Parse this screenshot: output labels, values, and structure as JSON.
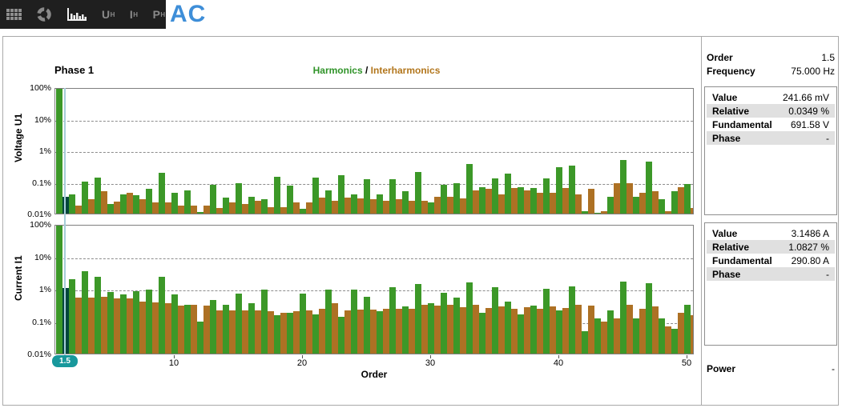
{
  "window": {
    "title": "AC"
  },
  "toolbar": {
    "u_label": "U",
    "i_label": "I",
    "p_label": "P",
    "sub": "H",
    "icons": [
      "table-grid-icon",
      "refresh-donut-icon",
      "harmonics-spectrum-icon"
    ]
  },
  "header": {
    "phase_label": "Phase 1"
  },
  "legend": {
    "harmonics_label": "Harmonics",
    "separator": " / ",
    "interharmonics_label": "Interharmonics"
  },
  "colors": {
    "harmonic": "#3c9828",
    "interharmonic": "#ad7124",
    "selected_bar": "#00473c",
    "cursor_line": "#a7ced9",
    "badge": "#18989c",
    "legend_harmonics": "#2f9328",
    "legend_interharmonics": "#b2761c",
    "accent_blue": "#3e8ed8"
  },
  "cursor": {
    "badge": "1.5",
    "order": 1.5
  },
  "x_axis": {
    "ticks": [
      10,
      20,
      30,
      40,
      50
    ],
    "label": "Order"
  },
  "chart_data": [
    {
      "type": "bar",
      "ylabel": "Voltage U1",
      "yticks": [
        "100%",
        "10%",
        "1%",
        "0.1%",
        "0.01%"
      ],
      "ylim_log_percent": [
        0.01,
        100
      ],
      "grid": "dashed-horizontal",
      "selected_order": 1.5,
      "series_rule": "integer orders = Harmonics (green), half orders = Interharmonics (orange)",
      "x": [
        1,
        1.5,
        2,
        2.5,
        3,
        3.5,
        4,
        4.5,
        5,
        5.5,
        6,
        6.5,
        7,
        7.5,
        8,
        8.5,
        9,
        9.5,
        10,
        10.5,
        11,
        11.5,
        12,
        12.5,
        13,
        13.5,
        14,
        14.5,
        15,
        15.5,
        16,
        16.5,
        17,
        17.5,
        18,
        18.5,
        19,
        19.5,
        20,
        20.5,
        21,
        21.5,
        22,
        22.5,
        23,
        23.5,
        24,
        24.5,
        25,
        25.5,
        26,
        26.5,
        27,
        27.5,
        28,
        28.5,
        29,
        29.5,
        30,
        30.5,
        31,
        31.5,
        32,
        32.5,
        33,
        33.5,
        34,
        34.5,
        35,
        35.5,
        36,
        36.5,
        37,
        37.5,
        38,
        38.5,
        39,
        39.5,
        40,
        40.5,
        41,
        41.5,
        42,
        42.5,
        43,
        43.5,
        44,
        44.5,
        45,
        45.5,
        46,
        46.5,
        47,
        47.5,
        48,
        48.5,
        49,
        49.5,
        50,
        50.5
      ],
      "values": [
        100,
        0.0349,
        0.04,
        0.018,
        0.105,
        0.028,
        0.14,
        0.05,
        0.02,
        0.024,
        0.04,
        0.045,
        0.038,
        0.028,
        0.06,
        0.022,
        0.2,
        0.022,
        0.045,
        0.018,
        0.055,
        0.018,
        0.011,
        0.018,
        0.08,
        0.015,
        0.032,
        0.022,
        0.09,
        0.02,
        0.035,
        0.026,
        0.028,
        0.016,
        0.15,
        0.016,
        0.075,
        0.022,
        0.014,
        0.022,
        0.14,
        0.032,
        0.055,
        0.025,
        0.16,
        0.032,
        0.04,
        0.03,
        0.12,
        0.028,
        0.04,
        0.025,
        0.12,
        0.028,
        0.05,
        0.025,
        0.21,
        0.026,
        0.022,
        0.035,
        0.08,
        0.035,
        0.09,
        0.03,
        0.38,
        0.055,
        0.07,
        0.06,
        0.13,
        0.04,
        0.19,
        0.065,
        0.07,
        0.055,
        0.065,
        0.045,
        0.13,
        0.045,
        0.3,
        0.065,
        0.34,
        0.04,
        0.012,
        0.06,
        0.01,
        0.012,
        0.035,
        0.09,
        0.5,
        0.09,
        0.035,
        0.045,
        0.45,
        0.05,
        0.028,
        0.012,
        0.05,
        0.07,
        0.085,
        0.015
      ]
    },
    {
      "type": "bar",
      "ylabel": "Current I1",
      "yticks": [
        "100%",
        "10%",
        "1%",
        "0.1%",
        "0.01%"
      ],
      "ylim_log_percent": [
        0.01,
        100
      ],
      "grid": "dashed-horizontal",
      "selected_order": 1.5,
      "series_rule": "integer orders = Harmonics (green), half orders = Interharmonics (orange)",
      "x": [
        1,
        1.5,
        2,
        2.5,
        3,
        3.5,
        4,
        4.5,
        5,
        5.5,
        6,
        6.5,
        7,
        7.5,
        8,
        8.5,
        9,
        9.5,
        10,
        10.5,
        11,
        11.5,
        12,
        12.5,
        13,
        13.5,
        14,
        14.5,
        15,
        15.5,
        16,
        16.5,
        17,
        17.5,
        18,
        18.5,
        19,
        19.5,
        20,
        20.5,
        21,
        21.5,
        22,
        22.5,
        23,
        23.5,
        24,
        24.5,
        25,
        25.5,
        26,
        26.5,
        27,
        27.5,
        28,
        28.5,
        29,
        29.5,
        30,
        30.5,
        31,
        31.5,
        32,
        32.5,
        33,
        33.5,
        34,
        34.5,
        35,
        35.5,
        36,
        36.5,
        37,
        37.5,
        38,
        38.5,
        39,
        39.5,
        40,
        40.5,
        41,
        41.5,
        42,
        42.5,
        43,
        43.5,
        44,
        44.5,
        45,
        45.5,
        46,
        46.5,
        47,
        47.5,
        48,
        48.5,
        49,
        49.5,
        50,
        50.5
      ],
      "values": [
        100,
        1.0827,
        2.0,
        0.55,
        3.5,
        0.55,
        2.4,
        0.58,
        0.8,
        0.5,
        0.68,
        0.52,
        0.86,
        0.4,
        0.93,
        0.38,
        2.3,
        0.37,
        0.68,
        0.3,
        0.32,
        0.32,
        0.1,
        0.3,
        0.45,
        0.22,
        0.32,
        0.22,
        0.73,
        0.22,
        0.35,
        0.21,
        0.95,
        0.2,
        0.15,
        0.18,
        0.18,
        0.2,
        0.7,
        0.22,
        0.16,
        0.24,
        0.95,
        0.35,
        0.14,
        0.22,
        0.97,
        0.23,
        0.56,
        0.23,
        0.2,
        0.24,
        1.15,
        0.24,
        0.28,
        0.24,
        1.4,
        0.32,
        0.35,
        0.31,
        0.75,
        0.32,
        0.55,
        0.27,
        1.6,
        0.33,
        0.18,
        0.26,
        1.1,
        0.28,
        0.4,
        0.24,
        0.16,
        0.27,
        0.3,
        0.24,
        1.0,
        0.28,
        0.22,
        0.25,
        1.2,
        0.33,
        0.05,
        0.3,
        0.12,
        0.1,
        0.22,
        0.12,
        1.7,
        0.33,
        0.12,
        0.24,
        1.5,
        0.29,
        0.12,
        0.07,
        0.06,
        0.18,
        0.33,
        0.15
      ]
    }
  ],
  "info_panel": {
    "order_label": "Order",
    "order_value": "1.5",
    "frequency_label": "Frequency",
    "frequency_value": "75.000 Hz",
    "voltage_box": {
      "rows": [
        {
          "label": "Value",
          "value": "241.66 mV"
        },
        {
          "label": "Relative",
          "value": "0.0349 %"
        },
        {
          "label": "Fundamental",
          "value": "691.58 V"
        },
        {
          "label": "Phase",
          "value": "-"
        }
      ]
    },
    "current_box": {
      "rows": [
        {
          "label": "Value",
          "value": "3.1486 A"
        },
        {
          "label": "Relative",
          "value": "1.0827 %"
        },
        {
          "label": "Fundamental",
          "value": "290.80 A"
        },
        {
          "label": "Phase",
          "value": "-"
        }
      ]
    },
    "power_label": "Power",
    "power_value": "-"
  }
}
